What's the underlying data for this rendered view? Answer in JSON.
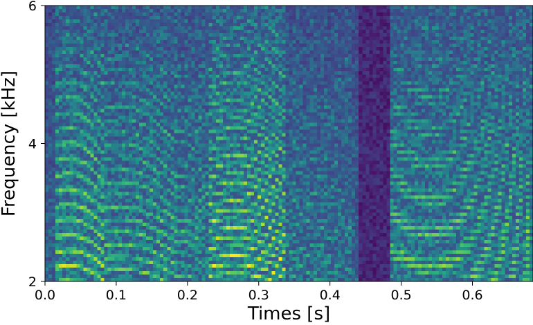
{
  "chart_data": {
    "type": "heatmap",
    "title": "",
    "xlabel": "Times [s]",
    "ylabel": "Frequency [kHz]",
    "xlim": [
      0.0,
      0.685
    ],
    "ylim": [
      2,
      6
    ],
    "x_ticks": [
      "0.0",
      "0.1",
      "0.2",
      "0.3",
      "0.4",
      "0.5",
      "0.6"
    ],
    "y_ticks": [
      "2",
      "4",
      "6"
    ],
    "colormap": "viridis",
    "grid": false,
    "segments": [
      {
        "t_start": 0.015,
        "t_end": 0.085,
        "f0_start": 0.22,
        "f0_end": 0.2,
        "intensity": 0.85
      },
      {
        "t_start": 0.085,
        "t_end": 0.185,
        "f0_start": 0.18,
        "f0_end": 0.16,
        "intensity": 0.6
      },
      {
        "t_start": 0.185,
        "t_end": 0.23,
        "f0_start": 0.16,
        "f0_end": 0.14,
        "intensity": 0.45
      },
      {
        "t_start": 0.23,
        "t_end": 0.34,
        "f0_start": 0.13,
        "f0_end": 0.12,
        "intensity": 0.95
      },
      {
        "t_start": 0.34,
        "t_end": 0.43,
        "f0_start": 0.12,
        "f0_end": 0.12,
        "intensity": 0.3
      },
      {
        "t_start": 0.485,
        "t_end": 0.685,
        "f0_start": 0.11,
        "f0_end": 0.1,
        "intensity": 0.65
      }
    ],
    "silent_bands": [
      {
        "t_start": 0.44,
        "t_end": 0.485
      }
    ]
  }
}
